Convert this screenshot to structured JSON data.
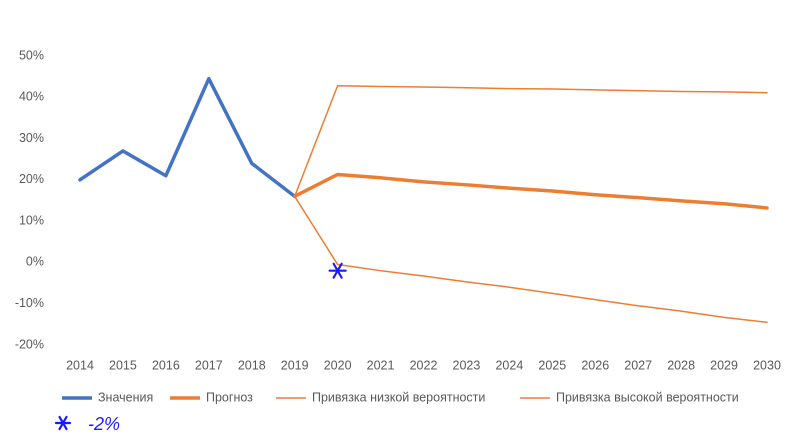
{
  "chart_data": {
    "type": "line",
    "categories": [
      "2014",
      "2015",
      "2016",
      "2017",
      "2018",
      "2019",
      "2020",
      "2021",
      "2022",
      "2023",
      "2024",
      "2025",
      "2026",
      "2027",
      "2028",
      "2029",
      "2030"
    ],
    "series": [
      {
        "name": "Значения",
        "color": "#4472c4",
        "line_width": 3.5,
        "values": [
          20,
          27,
          21,
          44.5,
          24,
          16,
          null,
          null,
          null,
          null,
          null,
          null,
          null,
          null,
          null,
          null,
          null
        ]
      },
      {
        "name": "Прогноз",
        "color": "#ed7d31",
        "line_width": 3.5,
        "values": [
          null,
          null,
          null,
          null,
          null,
          16,
          21.3,
          20.5,
          19.5,
          18.8,
          18,
          17.3,
          16.4,
          15.7,
          14.9,
          14.2,
          13.2
        ]
      },
      {
        "name": "Привязка низкой вероятности",
        "color": "#ed7d31",
        "line_width": 1.5,
        "values": [
          null,
          null,
          null,
          null,
          null,
          16,
          -0.5,
          -2,
          -3.3,
          -4.7,
          -6,
          -7.5,
          -9,
          -10.5,
          -11.8,
          -13.3,
          -14.5
        ]
      },
      {
        "name": "Привязка высокой вероятности",
        "color": "#ed7d31",
        "line_width": 1.5,
        "values": [
          null,
          null,
          null,
          null,
          null,
          16,
          42.8,
          42.6,
          42.5,
          42.3,
          42.1,
          42,
          41.8,
          41.6,
          41.4,
          41.3,
          41.1
        ]
      }
    ],
    "ylim": [
      -20,
      50
    ],
    "yticks": [
      {
        "value": -20,
        "label": "-20%"
      },
      {
        "value": -10,
        "label": "-10%"
      },
      {
        "value": 0,
        "label": "0%"
      },
      {
        "value": 10,
        "label": "10%"
      },
      {
        "value": 20,
        "label": "20%"
      },
      {
        "value": 30,
        "label": "30%"
      },
      {
        "value": 40,
        "label": "40%"
      },
      {
        "value": 50,
        "label": "50%"
      }
    ],
    "grid": false,
    "legend": "bottom",
    "annotation": {
      "x": "2020",
      "value": -2,
      "label": "-2%",
      "color": "#1a1aff"
    }
  }
}
